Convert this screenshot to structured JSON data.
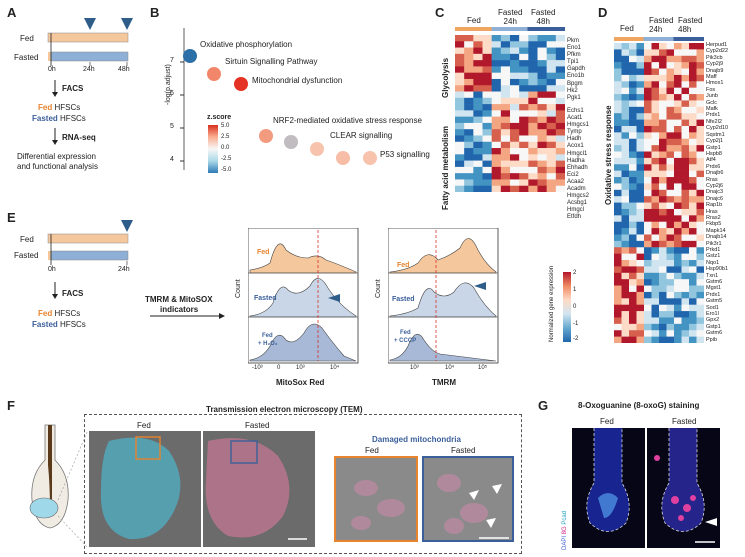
{
  "panels": {
    "a": "A",
    "b": "B",
    "c": "C",
    "d": "D",
    "e": "E",
    "f": "F",
    "g": "G"
  },
  "panelA": {
    "rows": [
      "Fed",
      "Fasted"
    ],
    "ticks": [
      "0h",
      "24h",
      "48h"
    ],
    "steps": [
      "FACS",
      "RNA-seq"
    ],
    "fed_hfscs": "Fed",
    "fasted_hfscs": "Fasted",
    "hfscs": "HFSCs",
    "analysis_line1": "Differential expression",
    "analysis_line2": "and functional analysis"
  },
  "panelB": {
    "ylabel": "-log(p.adjust)",
    "legend_title": "z.score",
    "legend_ticks": [
      "5.0",
      "2.5",
      "0.0",
      "-2.5",
      "-5.0"
    ],
    "yticks": [
      "7",
      "6",
      "5",
      "4"
    ],
    "terms": [
      "Oxidative phosphorylation",
      "Sirtuin Signalling Pathway",
      "Mitochondrial dysfunction",
      "NRF2-mediated oxidative stress response",
      "CLEAR signalling",
      "P53 signalling"
    ]
  },
  "panelC": {
    "groups": [
      "Fed",
      "Fasted\n24h",
      "Fasted\n48h"
    ],
    "row_groups": [
      "Glycolysis",
      "Fatty acid metabolism"
    ],
    "glycolysis_genes": [
      "Pkm",
      "Eno1",
      "Pfkm",
      "Tpi1",
      "Gapdh",
      "Eno1b",
      "Bpgm",
      "Hk2",
      "Pgk1"
    ],
    "fatty_genes": [
      "Echs1",
      "Acat1",
      "Hmgcs1",
      "Tymp",
      "Hadh",
      "Acox1",
      "Hmgcl1",
      "Hadha",
      "Ehhadh",
      "Eci2",
      "Acaa2",
      "Acadm",
      "Hmgcs2",
      "Acsbg1",
      "Hmgcl",
      "Etfdh"
    ]
  },
  "panelD": {
    "groups": [
      "Fed",
      "Fasted\n24h",
      "Fasted\n48h"
    ],
    "row_group": "Oxidative stress response",
    "genes": [
      "Herpud1",
      "Cyp2d22",
      "Pik3cb",
      "Cyp2j9",
      "Dnajb9",
      "Maff",
      "Hmox1",
      "Fos",
      "Junb",
      "Gclc",
      "Mafk",
      "Prdx1",
      "Nfe2l2",
      "Cyp2d10",
      "Sqstm1",
      "Cyp2j1",
      "Gstp1",
      "Hspb8",
      "Atf4",
      "Prdx6",
      "Dnajb6",
      "Rras",
      "Cyp2j6",
      "Dnajc3",
      "Dnajc6",
      "Rap1b",
      "Hras",
      "Rras2",
      "Fkbp5",
      "Mapk14",
      "Dnajb14",
      "Pik3r1",
      "Prkd1",
      "Gstz1",
      "Nqo1",
      "Hsp90b1",
      "Txn1",
      "Gstm6",
      "Mgst1",
      "Prdx1",
      "Gstm5",
      "Sod1",
      "Ero1l",
      "Gpx2",
      "Gstp1",
      "Gstm6",
      "Ppib"
    ],
    "legend_title": "Normalized gene expression",
    "legend_ticks": [
      "2",
      "1",
      "0",
      "-1",
      "-2"
    ]
  },
  "panelE": {
    "rows": [
      "Fed",
      "Fasted"
    ],
    "ticks": [
      "0h",
      "24h"
    ],
    "facs": "FACS",
    "fed_hfscs": "Fed",
    "fasted_hfscs": "Fasted",
    "hfscs": "HFSCs",
    "indicators_line1": "TMRM & MitoSOX",
    "indicators_line2": "indicators",
    "count": "Count",
    "mitosox_label": "MitoSox Red",
    "tmrm_label": "TMRM",
    "mitosox_ticks": [
      "-10³",
      "0",
      "10³",
      "10⁴"
    ],
    "tmrm_ticks": [
      "10³",
      "10⁴",
      "10⁵"
    ],
    "hist_fed": "Fed",
    "hist_fasted": "Fasted",
    "hist_h2o2_1": "Fed",
    "hist_h2o2_2": "+ H₂O₂",
    "hist_cccp_1": "Fed",
    "hist_cccp_2": "+ CCCP"
  },
  "panelF": {
    "title": "Transmission electron microscopy (TEM)",
    "fed": "Fed",
    "fasted": "Fasted",
    "damaged": "Damaged mitochondria",
    "fed2": "Fed",
    "fasted2": "Fasted"
  },
  "panelG": {
    "title": "8-Oxoguanine (8-oxoG) staining",
    "fed": "Fed",
    "fasted": "Fasted",
    "side_dapi": "DAPI",
    "side_8g": "8G",
    "side_pcad": "Pcad"
  },
  "colors": {
    "fed": "#e8832e",
    "fasted": "#3b5f9a",
    "barFed": "#f5c79d",
    "barFasted": "#8fb0d6",
    "red": "#d73027",
    "blue": "#4575b4"
  }
}
